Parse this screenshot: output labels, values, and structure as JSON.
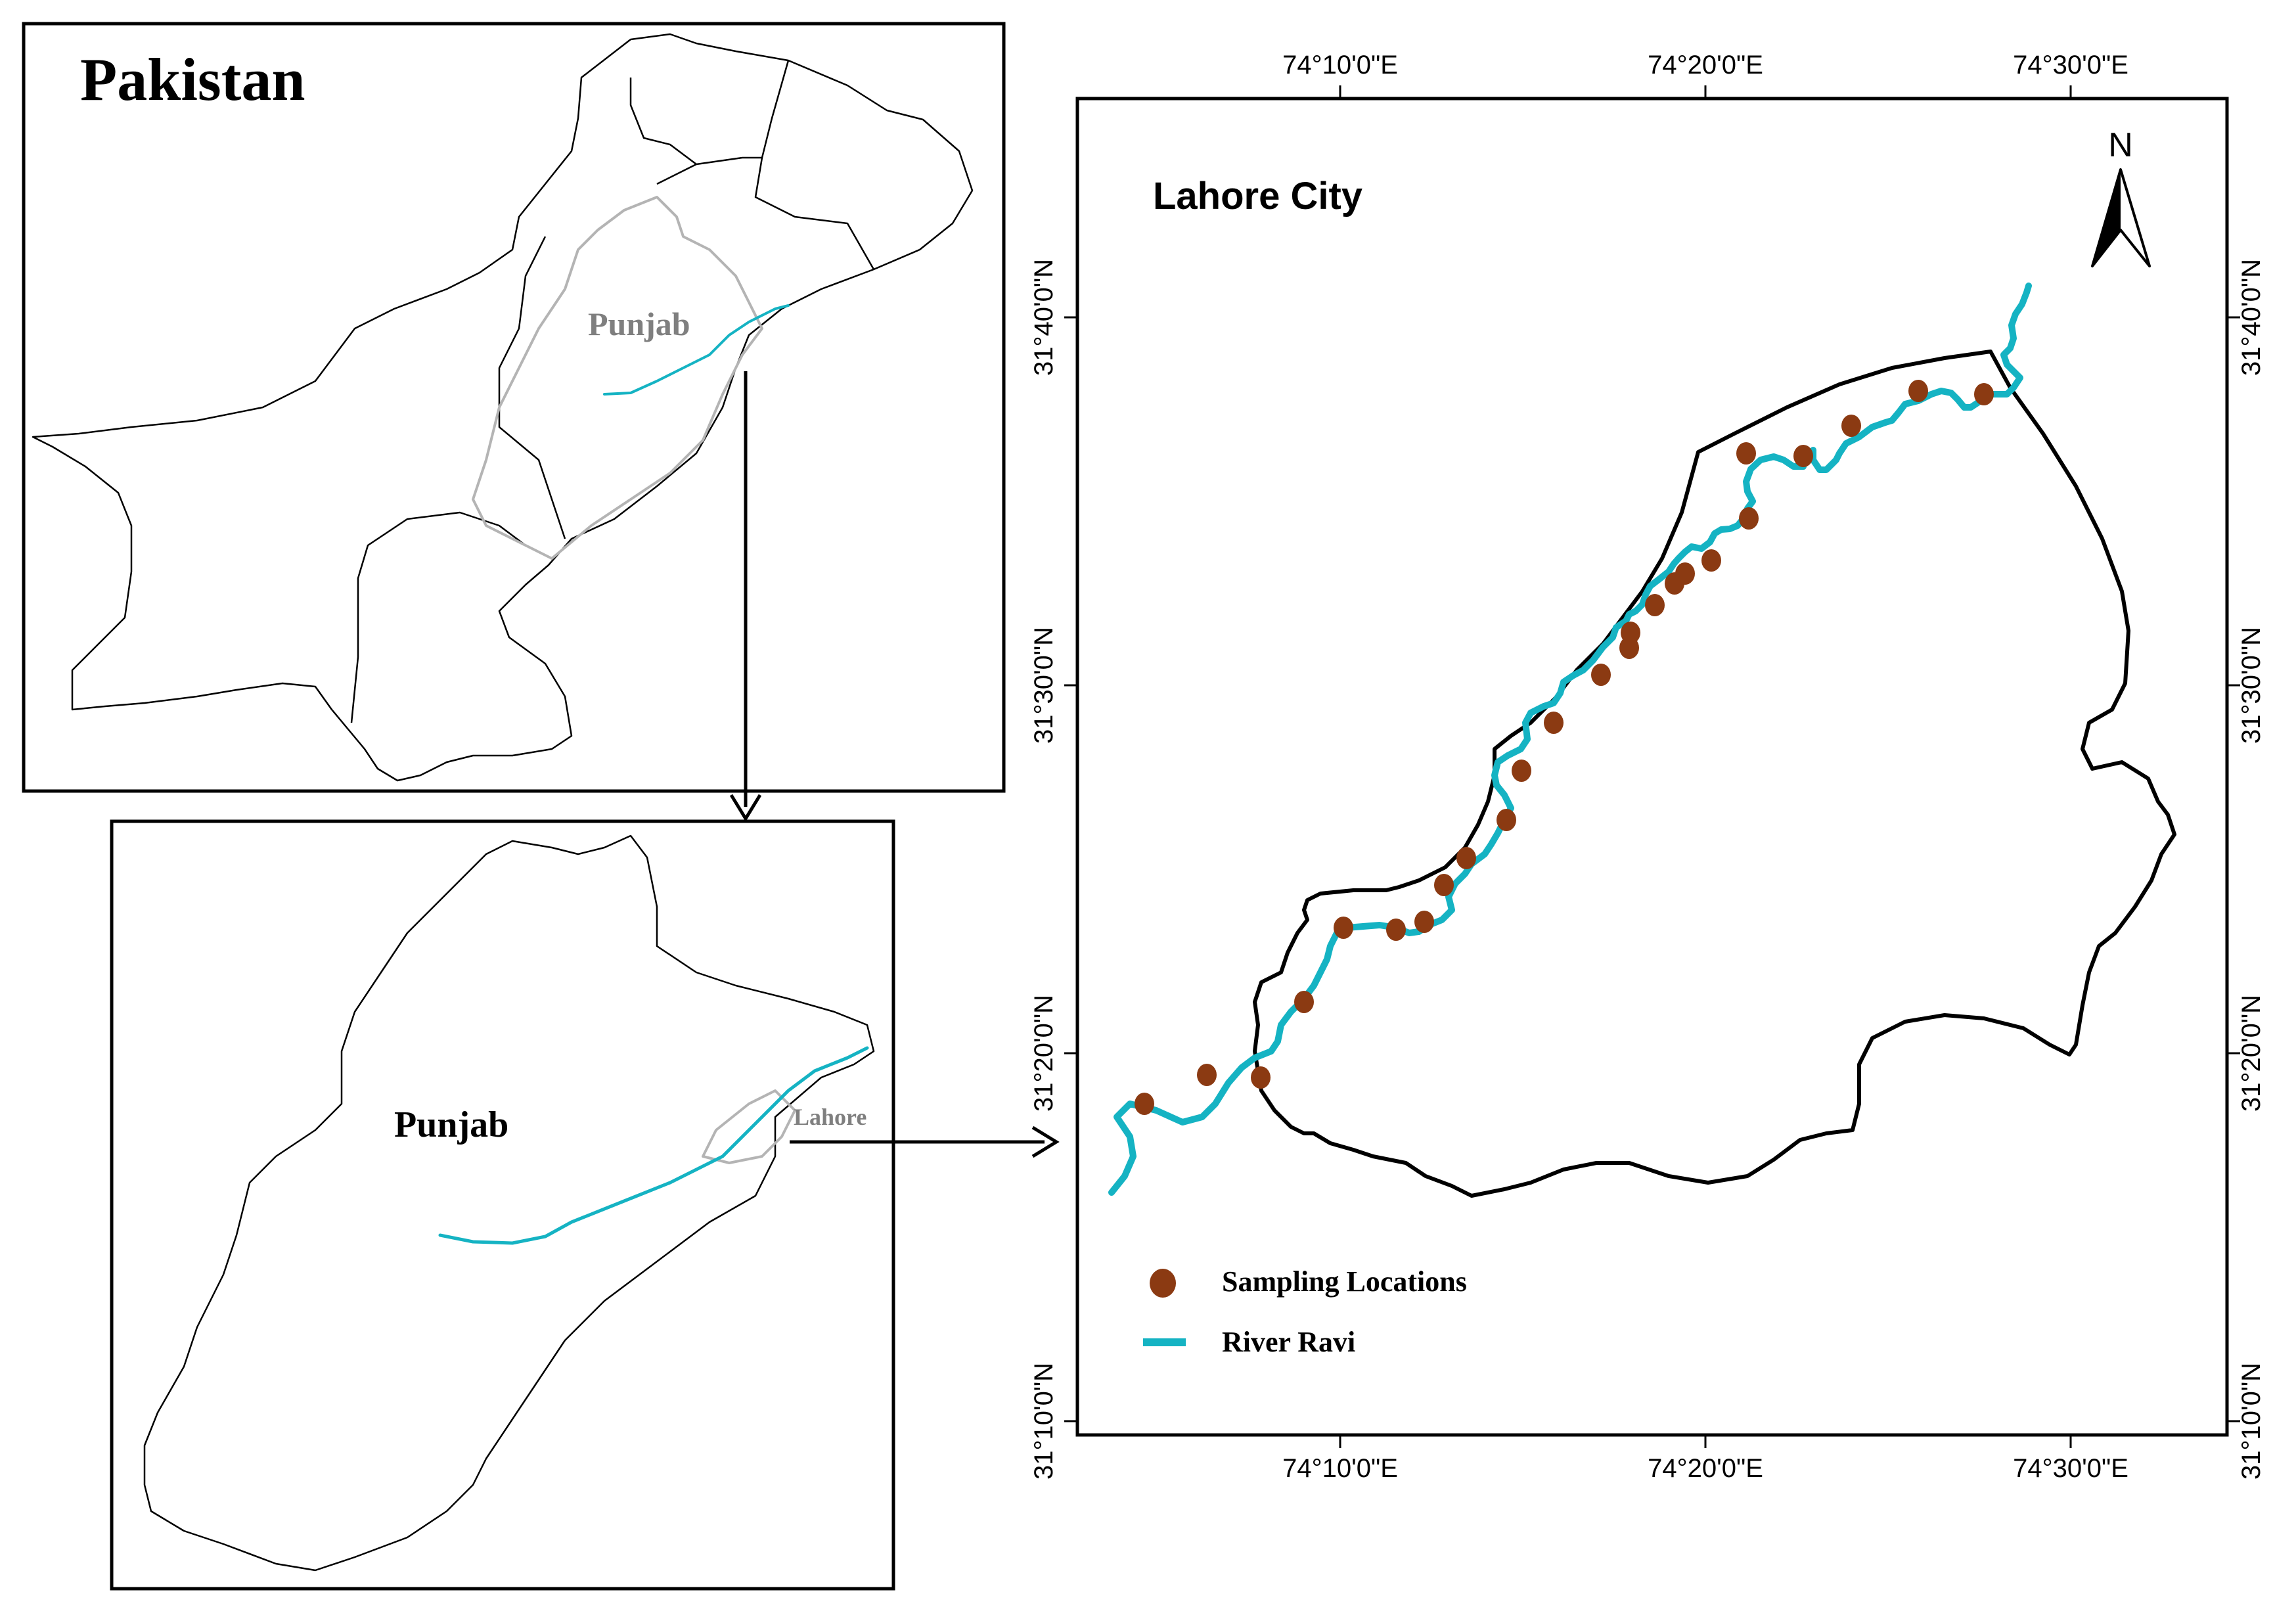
{
  "panels": {
    "pakistan": {
      "title": "Pakistan",
      "province_label": "Punjab"
    },
    "punjab": {
      "title": "Punjab",
      "city_label": "Lahore"
    },
    "lahore": {
      "title": "Lahore City",
      "north_label": "N",
      "top_ticks": [
        "74°10'0\"E",
        "74°20'0\"E",
        "74°30'0\"E"
      ],
      "bottom_ticks": [
        "74°10'0\"E",
        "74°20'0\"E",
        "74°30'0\"E"
      ],
      "left_ticks": [
        "31°40'0\"N",
        "31°30'0\"N",
        "31°20'0\"N",
        "31°10'0\"N"
      ],
      "right_ticks": [
        "31°40'0\"N",
        "31°30'0\"N",
        "31°20'0\"N",
        "31°10'0\"N"
      ]
    }
  },
  "legend": {
    "sampling": "Sampling Locations",
    "river": "River Ravi"
  },
  "colors": {
    "river": "#15b3c3",
    "sampling": "#8b3a12",
    "boundary": "#000000",
    "punjab_outline": "#b4b4b4"
  },
  "sampling_points_count": 27
}
